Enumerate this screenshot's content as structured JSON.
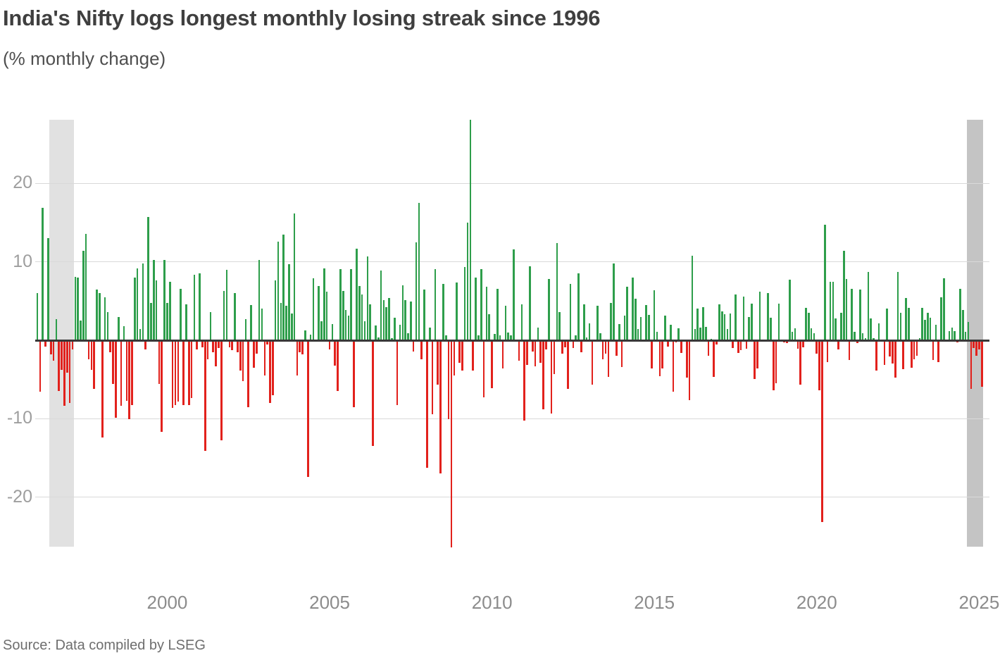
{
  "header": {
    "title": "India's Nifty logs longest monthly losing streak since 1996",
    "subtitle": "(% monthly change)"
  },
  "footer": {
    "source": "Source: Data compiled by LSEG"
  },
  "chart_data": {
    "type": "bar",
    "title": "India's Nifty logs longest monthly losing streak since 1996",
    "subtitle": "(% monthly change)",
    "unit": "percent",
    "xlabel": "",
    "ylabel": "% monthly change",
    "start_month": "1996-01",
    "end_month": "2025-02",
    "x_ticks": [
      2000,
      2005,
      2010,
      2015,
      2020,
      2025
    ],
    "y_ticks": [
      20,
      10,
      -10,
      -20
    ],
    "ylim": [
      -27.5,
      28.2
    ],
    "grid": true,
    "legend": "none",
    "colors": {
      "positive": "#2e9e4b",
      "negative": "#e2211c",
      "band_light": "#e1e1e1",
      "band_dark": "#c4c4c4",
      "axis": "#383838",
      "gridline": "#d9d9d9",
      "y_tick_label": "#9e9e9e",
      "x_tick_label": "#8c8c8c",
      "title": "#3f3f3f",
      "subtitle": "#4f4f4f",
      "source": "#6e6e6e"
    },
    "highlight_bands": [
      {
        "from_month": "1996-06",
        "to_month": "1997-02",
        "shade": "band_light"
      },
      {
        "from_month": "2024-09",
        "to_month": "2025-02",
        "shade": "band_dark"
      }
    ],
    "series": [
      {
        "name": "Nifty monthly % change",
        "start": "1996-01",
        "values": [
          6.0,
          -6.6,
          16.9,
          -0.8,
          13.0,
          -1.8,
          -2.6,
          2.7,
          -6.5,
          -3.8,
          -8.4,
          -4.1,
          -8.0,
          -1.2,
          8.1,
          8.0,
          2.5,
          11.4,
          13.6,
          -2.4,
          -3.8,
          -6.2,
          6.5,
          6.0,
          -12.4,
          5.5,
          3.6,
          -1.5,
          -5.6,
          -9.9,
          3.0,
          -8.4,
          1.8,
          -7.7,
          -10.1,
          -8.3,
          8.0,
          9.2,
          1.4,
          9.8,
          -1.2,
          15.7,
          4.8,
          10.2,
          7.6,
          -5.6,
          -11.7,
          10.2,
          4.8,
          7.5,
          -8.6,
          -8.3,
          -7.8,
          6.6,
          -8.3,
          4.6,
          -8.3,
          -7.4,
          8.4,
          -1.2,
          8.5,
          -0.9,
          -14.1,
          -2.4,
          3.6,
          -1.5,
          -3.3,
          -1.0,
          -12.8,
          6.3,
          9.0,
          -0.9,
          -1.3,
          6.0,
          -1.5,
          -3.9,
          -5.2,
          2.7,
          -8.5,
          4.5,
          -3.5,
          -1.7,
          10.2,
          4.0,
          -4.5,
          -0.5,
          -8.0,
          -7.0,
          7.6,
          12.6,
          4.8,
          13.5,
          4.4,
          9.7,
          3.4,
          16.2,
          -4.5,
          -1.5,
          -1.8,
          1.3,
          -17.4,
          0.7,
          7.9,
          0.0,
          6.9,
          2.4,
          9.2,
          6.2,
          -1.2,
          2.1,
          -3.2,
          -6.5,
          9.1,
          6.3,
          3.9,
          3.1,
          9.1,
          -8.5,
          11.7,
          6.9,
          5.8,
          2.4,
          10.7,
          4.6,
          -13.5,
          1.9,
          0.4,
          8.9,
          5.1,
          4.2,
          5.4,
          0.3,
          2.9,
          -8.3,
          2.0,
          7.0,
          5.1,
          0.9,
          4.9,
          -1.4,
          12.5,
          17.5,
          -2.4,
          6.5,
          -16.3,
          1.6,
          -9.4,
          9.1,
          -5.7,
          -17.0,
          7.2,
          0.6,
          -10.1,
          -26.4,
          -4.5,
          7.4,
          -2.9,
          -3.9,
          9.3,
          15.0,
          28.1,
          -3.9,
          8.0,
          0.6,
          9.1,
          -7.3,
          6.8,
          3.3,
          -6.1,
          0.8,
          6.6,
          0.6,
          -3.6,
          4.4,
          1.0,
          0.6,
          11.6,
          -0.2,
          -2.6,
          4.6,
          -10.2,
          -3.1,
          9.4,
          -1.4,
          -3.3,
          1.6,
          -2.9,
          -8.8,
          -1.2,
          7.8,
          -9.3,
          -4.3,
          12.4,
          3.6,
          -1.7,
          -0.9,
          -6.2,
          7.2,
          -1.0,
          0.6,
          8.5,
          -1.5,
          4.6,
          0.4,
          2.2,
          -5.7,
          -0.2,
          4.4,
          0.9,
          -2.4,
          -1.7,
          -4.7,
          4.8,
          9.8,
          -2.0,
          2.1,
          -3.4,
          3.1,
          6.8,
          -0.1,
          8.0,
          5.3,
          1.4,
          3.0,
          0.1,
          4.5,
          3.2,
          -3.6,
          6.4,
          1.1,
          -4.6,
          -3.6,
          3.1,
          -0.8,
          2.0,
          -6.6,
          -0.3,
          1.5,
          -1.6,
          0.1,
          -4.8,
          -7.6,
          10.8,
          1.4,
          4.0,
          1.6,
          4.2,
          1.7,
          -2.0,
          0.2,
          -4.7,
          -0.5,
          4.6,
          3.7,
          3.3,
          1.4,
          3.4,
          -1.0,
          5.8,
          -1.6,
          -1.3,
          5.6,
          -1.1,
          3.0,
          4.7,
          -4.9,
          -3.6,
          6.2,
          0.0,
          -0.2,
          6.0,
          2.9,
          -6.4,
          -5.5,
          4.7,
          -0.1,
          -0.3,
          -0.4,
          7.7,
          1.1,
          1.5,
          -1.1,
          -5.7,
          -0.9,
          4.1,
          3.5,
          1.5,
          0.9,
          -1.7,
          -6.4,
          -23.2,
          14.7,
          -2.8,
          7.5,
          7.5,
          2.8,
          -1.2,
          3.5,
          11.4,
          7.8,
          -2.5,
          6.6,
          1.1,
          -0.4,
          6.5,
          0.9,
          0.3,
          8.7,
          2.8,
          0.3,
          -3.9,
          2.2,
          -0.1,
          -3.1,
          4.0,
          -2.1,
          -3.0,
          -4.8,
          8.7,
          3.5,
          -3.7,
          5.4,
          4.1,
          -3.5,
          -2.4,
          -2.0,
          0.3,
          4.1,
          2.6,
          3.5,
          2.9,
          -2.5,
          2.0,
          -2.8,
          5.5,
          7.9,
          0.0,
          1.2,
          1.6,
          1.2,
          -0.3,
          6.6,
          3.9,
          1.1,
          2.3,
          -6.2,
          -1.0,
          -2.0,
          -1.2,
          -5.9
        ]
      }
    ]
  }
}
